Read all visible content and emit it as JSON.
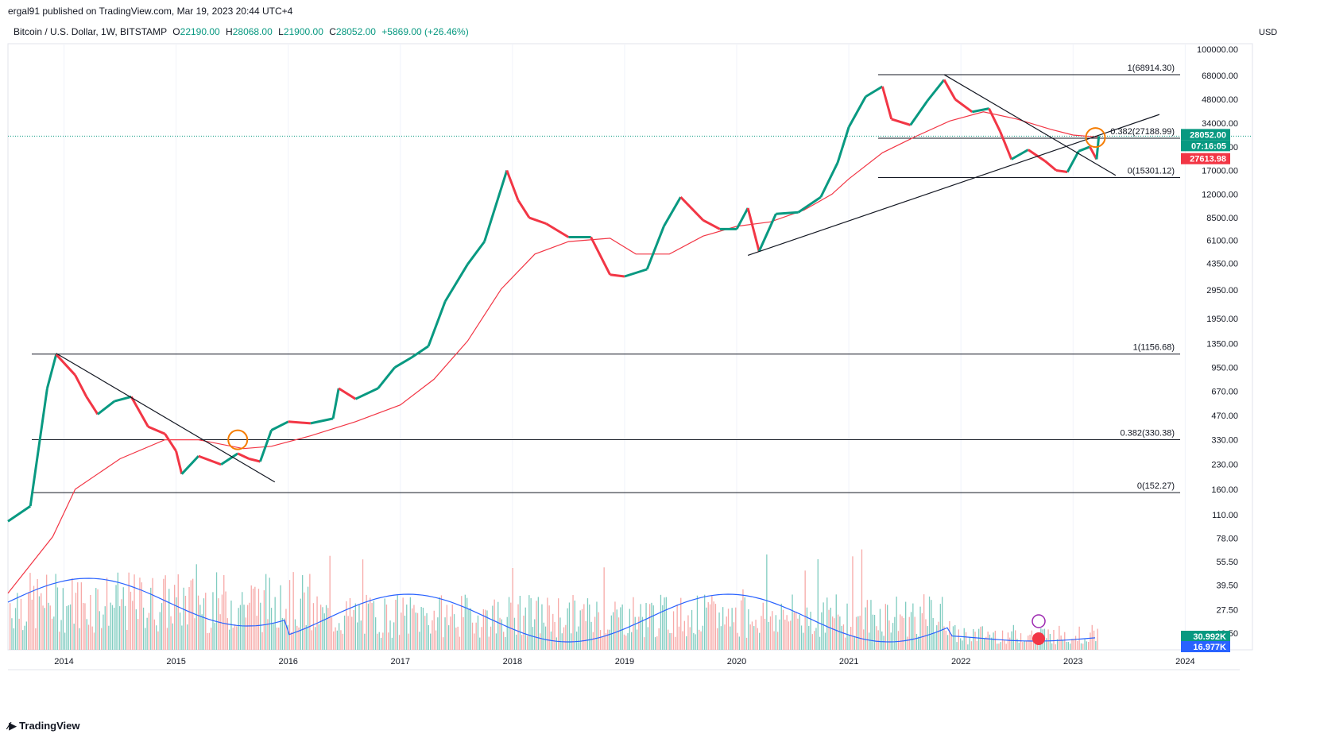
{
  "header": {
    "published": "ergal91 published on TradingView.com, Mar 19, 2023 20:44 UTC+4"
  },
  "legend": {
    "symbol": "Bitcoin / U.S. Dollar, 1W, BITSTAMP",
    "o_label": "O",
    "o_value": "22190.00",
    "h_label": "H",
    "h_value": "28068.00",
    "l_label": "L",
    "l_value": "21900.00",
    "c_label": "C",
    "c_value": "28052.00",
    "change": "+5869.00 (+26.46%)"
  },
  "footer": {
    "brand": "TradingView",
    "logo_icon": "tradingview-logo-icon"
  },
  "colors": {
    "up": "#089981",
    "down": "#f23645",
    "ma": "#f23645",
    "vol_ma": "#2962ff",
    "fib": "#131722",
    "circle": "#f57c00"
  },
  "chart_data": {
    "type": "candlestick",
    "scale": "log",
    "currency_label": "USD",
    "x_ticks": [
      "2014",
      "2015",
      "2016",
      "2017",
      "2018",
      "2019",
      "2020",
      "2021",
      "2022",
      "2023",
      "2024"
    ],
    "y_ticks": [
      "100000.00",
      "68000.00",
      "48000.00",
      "34000.00",
      "24000.00",
      "17000.00",
      "12000.00",
      "8500.00",
      "6100.00",
      "4350.00",
      "2950.00",
      "1950.00",
      "1350.00",
      "950.00",
      "670.00",
      "470.00",
      "330.00",
      "230.00",
      "160.00",
      "110.00",
      "78.00",
      "55.50",
      "39.50",
      "27.50",
      "19.50"
    ],
    "last_price": "28052.00",
    "countdown": "07:16:05",
    "ma_value": "27613.98",
    "volume_labels": [
      "30.992K",
      "16.977K"
    ],
    "fib_levels": [
      {
        "label": "1(68914.30)",
        "price": 68914.3
      },
      {
        "label": "0.382(27188.99)",
        "price": 27188.99
      },
      {
        "label": "0(15301.12)",
        "price": 15301.12
      },
      {
        "label": "1(1156.68)",
        "price": 1156.68
      },
      {
        "label": "0.382(330.38)",
        "price": 330.38
      },
      {
        "label": "0(152.27)",
        "price": 152.27
      }
    ],
    "price_path": [
      [
        2013.5,
        100
      ],
      [
        2013.7,
        125
      ],
      [
        2013.85,
        700
      ],
      [
        2013.93,
        1150
      ],
      [
        2014.1,
        850
      ],
      [
        2014.2,
        620
      ],
      [
        2014.3,
        480
      ],
      [
        2014.45,
        580
      ],
      [
        2014.6,
        620
      ],
      [
        2014.75,
        400
      ],
      [
        2014.9,
        360
      ],
      [
        2015.0,
        280
      ],
      [
        2015.05,
        200
      ],
      [
        2015.2,
        260
      ],
      [
        2015.4,
        230
      ],
      [
        2015.55,
        270
      ],
      [
        2015.65,
        250
      ],
      [
        2015.75,
        240
      ],
      [
        2015.85,
        380
      ],
      [
        2016.0,
        430
      ],
      [
        2016.2,
        420
      ],
      [
        2016.4,
        450
      ],
      [
        2016.45,
        700
      ],
      [
        2016.6,
        600
      ],
      [
        2016.8,
        700
      ],
      [
        2016.95,
        950
      ],
      [
        2017.1,
        1100
      ],
      [
        2017.25,
        1300
      ],
      [
        2017.4,
        2500
      ],
      [
        2017.6,
        4300
      ],
      [
        2017.75,
        6000
      ],
      [
        2017.95,
        17000
      ],
      [
        2018.05,
        11000
      ],
      [
        2018.15,
        8500
      ],
      [
        2018.3,
        7800
      ],
      [
        2018.5,
        6400
      ],
      [
        2018.7,
        6400
      ],
      [
        2018.87,
        3700
      ],
      [
        2019.0,
        3600
      ],
      [
        2019.2,
        4000
      ],
      [
        2019.35,
        7500
      ],
      [
        2019.5,
        11500
      ],
      [
        2019.7,
        8200
      ],
      [
        2019.85,
        7200
      ],
      [
        2020.0,
        7200
      ],
      [
        2020.1,
        9800
      ],
      [
        2020.2,
        5200
      ],
      [
        2020.35,
        9000
      ],
      [
        2020.55,
        9200
      ],
      [
        2020.75,
        11500
      ],
      [
        2020.9,
        19000
      ],
      [
        2021.0,
        32000
      ],
      [
        2021.15,
        50000
      ],
      [
        2021.3,
        58000
      ],
      [
        2021.38,
        36000
      ],
      [
        2021.55,
        33000
      ],
      [
        2021.7,
        47000
      ],
      [
        2021.85,
        64000
      ],
      [
        2021.95,
        48000
      ],
      [
        2022.1,
        40000
      ],
      [
        2022.25,
        42000
      ],
      [
        2022.35,
        30000
      ],
      [
        2022.45,
        20000
      ],
      [
        2022.6,
        23000
      ],
      [
        2022.75,
        19500
      ],
      [
        2022.85,
        17000
      ],
      [
        2022.95,
        16600
      ],
      [
        2023.05,
        22500
      ],
      [
        2023.15,
        24000
      ],
      [
        2023.21,
        20000
      ],
      [
        2023.23,
        28052
      ]
    ],
    "ma_path": [
      [
        2013.5,
        35
      ],
      [
        2013.9,
        80
      ],
      [
        2014.1,
        160
      ],
      [
        2014.5,
        250
      ],
      [
        2014.9,
        330
      ],
      [
        2015.2,
        330
      ],
      [
        2015.6,
        290
      ],
      [
        2015.85,
        300
      ],
      [
        2016.2,
        350
      ],
      [
        2016.6,
        430
      ],
      [
        2017.0,
        550
      ],
      [
        2017.3,
        800
      ],
      [
        2017.6,
        1400
      ],
      [
        2017.9,
        3000
      ],
      [
        2018.2,
        5000
      ],
      [
        2018.5,
        6000
      ],
      [
        2018.87,
        6300
      ],
      [
        2019.1,
        5000
      ],
      [
        2019.4,
        5000
      ],
      [
        2019.7,
        6500
      ],
      [
        2020.0,
        7500
      ],
      [
        2020.3,
        8000
      ],
      [
        2020.6,
        9500
      ],
      [
        2020.85,
        12000
      ],
      [
        2021.0,
        15000
      ],
      [
        2021.3,
        22000
      ],
      [
        2021.6,
        28000
      ],
      [
        2021.9,
        35000
      ],
      [
        2022.2,
        40000
      ],
      [
        2022.5,
        36000
      ],
      [
        2022.8,
        31000
      ],
      [
        2023.0,
        28500
      ],
      [
        2023.23,
        27614
      ]
    ],
    "trendlines": [
      {
        "from": [
          2013.93,
          1170
        ],
        "to": [
          2015.88,
          178
        ]
      },
      {
        "from": [
          2021.85,
          69000
        ],
        "to": [
          2023.38,
          15800
        ]
      },
      {
        "from": [
          2020.1,
          4900
        ],
        "to": [
          2023.77,
          38500
        ]
      }
    ],
    "circles": [
      {
        "x": 2015.55,
        "price": 330
      },
      {
        "x": 2023.2,
        "price": 27500
      }
    ]
  }
}
